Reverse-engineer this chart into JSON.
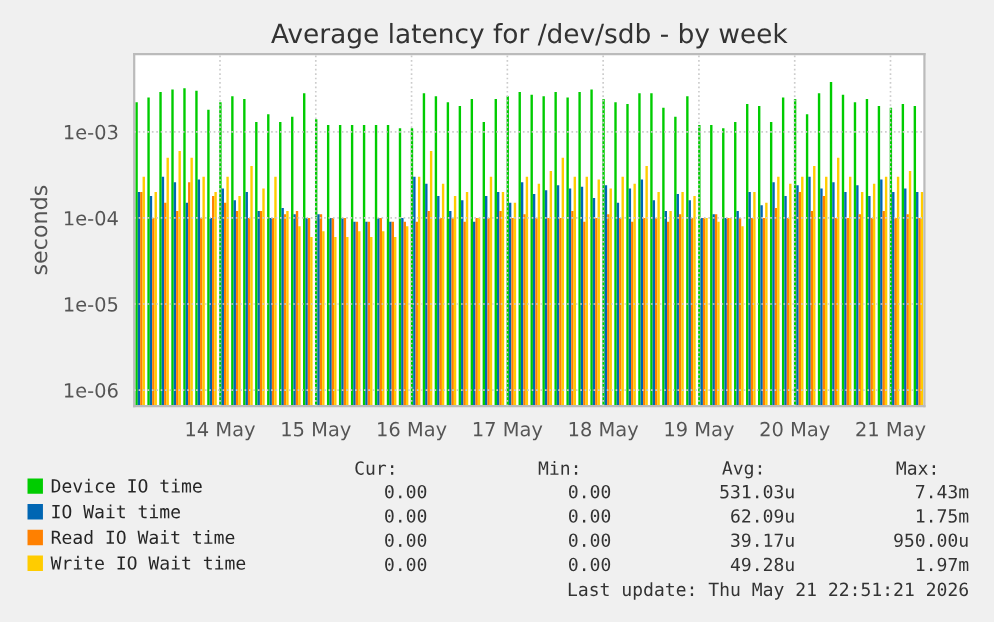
{
  "chart_data": {
    "type": "bar",
    "title": "Average latency for /dev/sdb - by week",
    "ylabel": "seconds",
    "log": "y",
    "grid": true,
    "legend": "bottom",
    "x": [
      "2026-05-13T16:00",
      "2026-05-13T19:00",
      "2026-05-13T22:00",
      "2026-05-14T01:00",
      "2026-05-14T04:00",
      "2026-05-14T07:00",
      "2026-05-14T10:00",
      "2026-05-14T13:00",
      "2026-05-14T16:00",
      "2026-05-14T19:00",
      "2026-05-14T22:00",
      "2026-05-15T01:00",
      "2026-05-15T04:00",
      "2026-05-15T07:00",
      "2026-05-15T10:00",
      "2026-05-15T13:00",
      "2026-05-15T16:00",
      "2026-05-15T19:00",
      "2026-05-15T22:00",
      "2026-05-16T01:00",
      "2026-05-16T04:00",
      "2026-05-16T07:00",
      "2026-05-16T10:00",
      "2026-05-16T13:00",
      "2026-05-16T16:00",
      "2026-05-16T19:00",
      "2026-05-16T22:00",
      "2026-05-17T01:00",
      "2026-05-17T04:00",
      "2026-05-17T07:00",
      "2026-05-17T10:00",
      "2026-05-17T13:00",
      "2026-05-17T16:00",
      "2026-05-17T19:00",
      "2026-05-17T22:00",
      "2026-05-18T01:00",
      "2026-05-18T04:00",
      "2026-05-18T07:00",
      "2026-05-18T10:00",
      "2026-05-18T13:00",
      "2026-05-18T16:00",
      "2026-05-18T19:00",
      "2026-05-18T22:00",
      "2026-05-19T01:00",
      "2026-05-19T04:00",
      "2026-05-19T07:00",
      "2026-05-19T10:00",
      "2026-05-19T13:00",
      "2026-05-19T16:00",
      "2026-05-19T19:00",
      "2026-05-19T22:00",
      "2026-05-20T01:00",
      "2026-05-20T04:00",
      "2026-05-20T07:00",
      "2026-05-20T10:00",
      "2026-05-20T13:00",
      "2026-05-20T16:00",
      "2026-05-20T19:00",
      "2026-05-20T22:00",
      "2026-05-21T01:00",
      "2026-05-21T04:00",
      "2026-05-21T07:00",
      "2026-05-21T10:00",
      "2026-05-21T13:00",
      "2026-05-21T16:00",
      "2026-05-21T19:00"
    ],
    "xlim": [
      "2026-05-13T14:30",
      "2026-05-21T20:30"
    ],
    "xticks": [
      {
        "value": "2026-05-14T12:00",
        "label": "14 May"
      },
      {
        "value": "2026-05-15T12:00",
        "label": "15 May"
      },
      {
        "value": "2026-05-16T12:00",
        "label": "16 May"
      },
      {
        "value": "2026-05-17T12:00",
        "label": "17 May"
      },
      {
        "value": "2026-05-18T12:00",
        "label": "18 May"
      },
      {
        "value": "2026-05-19T12:00",
        "label": "19 May"
      },
      {
        "value": "2026-05-20T12:00",
        "label": "20 May"
      },
      {
        "value": "2026-05-21T12:00",
        "label": "21 May"
      }
    ],
    "ylim": [
      6.5e-07,
      0.008
    ],
    "yticks": [
      {
        "value": 1e-06,
        "label": "1e-06"
      },
      {
        "value": 1e-05,
        "label": "1e-05"
      },
      {
        "value": 0.0001,
        "label": "1e-04"
      },
      {
        "value": 0.001,
        "label": "1e-03"
      }
    ],
    "series": [
      {
        "name": "Device IO time",
        "color": "#00cc00",
        "values": [
          0.0022,
          0.0025,
          0.0029,
          0.0031,
          0.0032,
          0.003,
          0.0018,
          0.0022,
          0.0026,
          0.0024,
          0.0013,
          0.0016,
          0.0013,
          0.0015,
          0.0028,
          0.0014,
          0.0012,
          0.0012,
          0.0012,
          0.0012,
          0.0012,
          0.0012,
          0.0011,
          0.0011,
          0.0028,
          0.0026,
          0.0022,
          0.002,
          0.0024,
          0.0013,
          0.0024,
          0.0026,
          0.0029,
          0.0027,
          0.0026,
          0.0029,
          0.0025,
          0.0029,
          0.0031,
          0.0024,
          0.0022,
          0.0021,
          0.0028,
          0.0028,
          0.0019,
          0.0015,
          0.0026,
          0.0012,
          0.0012,
          0.0011,
          0.0013,
          0.0021,
          0.002,
          0.0013,
          0.0025,
          0.0024,
          0.0016,
          0.0028,
          0.0038,
          0.0027,
          0.0022,
          0.0024,
          0.002,
          0.0019,
          0.0021,
          0.002
        ]
      },
      {
        "name": "IO Wait time",
        "color": "#0066b3",
        "values": [
          0.0002,
          0.00018,
          0.0003,
          0.00026,
          0.00015,
          0.00028,
          0.0001,
          0.00022,
          0.00016,
          0.0002,
          0.00012,
          0.0001,
          0.00013,
          0.00011,
          0.0001,
          0.00011,
          0.0001,
          0.0001,
          9e-05,
          9e-05,
          0.0001,
          9e-05,
          0.0001,
          0.0003,
          0.00025,
          0.00018,
          0.00012,
          0.00016,
          9e-05,
          0.00018,
          0.0002,
          0.00015,
          0.00026,
          0.00019,
          0.00021,
          0.00024,
          0.00022,
          0.00023,
          0.00017,
          0.00024,
          0.00015,
          0.00022,
          0.00028,
          0.00016,
          0.00012,
          0.00019,
          0.00016,
          0.0001,
          0.00011,
          0.0001,
          0.00012,
          0.0002,
          0.00014,
          0.00026,
          0.00018,
          0.00024,
          0.0003,
          0.00022,
          0.00026,
          0.0002,
          0.00024,
          0.00018,
          0.00028,
          0.0002,
          0.00022,
          0.0002
        ]
      },
      {
        "name": "Read IO Wait time",
        "color": "#ff8000",
        "values": [
          0.0002,
          0.0001,
          0.00015,
          0.00012,
          0.00026,
          0.0001,
          0.00018,
          0.00015,
          0.00012,
          0.0001,
          0.00012,
          0.0001,
          0.00011,
          0.00012,
          0.0001,
          0.00011,
          0.0001,
          0.0001,
          9e-05,
          9e-05,
          0.0001,
          9e-05,
          9e-05,
          9e-05,
          0.00012,
          0.0001,
          0.0001,
          9e-05,
          0.0001,
          0.0001,
          0.00012,
          0.0001,
          0.00011,
          0.0001,
          0.0001,
          0.0001,
          0.00012,
          9e-05,
          0.0001,
          0.00011,
          0.0001,
          9e-05,
          0.0001,
          0.0001,
          9e-05,
          0.00011,
          0.0001,
          0.0001,
          0.00011,
          0.0001,
          0.0001,
          0.0001,
          0.0001,
          0.00013,
          0.0001,
          0.0002,
          0.00012,
          0.00018,
          0.0001,
          0.0001,
          0.00011,
          0.0001,
          0.00012,
          0.0001,
          0.00011,
          0.0001
        ]
      },
      {
        "name": "Write IO Wait time",
        "color": "#ffcc00",
        "values": [
          0.0003,
          0.0002,
          0.0005,
          0.0006,
          0.0005,
          0.0003,
          0.0002,
          0.0003,
          0.00018,
          0.0004,
          0.00022,
          0.0003,
          0.00012,
          8e-05,
          6e-05,
          7e-05,
          6e-05,
          6e-05,
          7e-05,
          6e-05,
          7e-05,
          6e-05,
          8e-05,
          0.0003,
          0.0006,
          0.00025,
          0.00018,
          0.0002,
          0.0001,
          0.0003,
          0.0002,
          0.00015,
          0.0003,
          0.00025,
          0.00035,
          0.0005,
          0.0003,
          0.0003,
          0.00028,
          0.00022,
          0.0003,
          0.00025,
          0.0004,
          0.0002,
          0.00012,
          0.0002,
          0.00018,
          0.0001,
          9e-05,
          0.0001,
          8e-05,
          0.0002,
          0.00015,
          0.0003,
          0.00025,
          0.0003,
          0.0004,
          0.0003,
          0.0005,
          0.0003,
          0.0002,
          0.00025,
          0.0003,
          0.0003,
          0.00035,
          0.0002
        ]
      }
    ],
    "annotations": [
      "Cur:",
      "Min:",
      "Avg:",
      "Max:",
      "0.00",
      "0.00",
      "531.03u",
      "7.43m",
      "0.00",
      "0.00",
      "62.09u",
      "1.75m",
      "0.00",
      "0.00",
      "39.17u",
      "950.00u",
      "0.00",
      "0.00",
      "49.28u",
      "1.97m",
      "Last update: Thu May 21 22:51:21 2026"
    ]
  }
}
